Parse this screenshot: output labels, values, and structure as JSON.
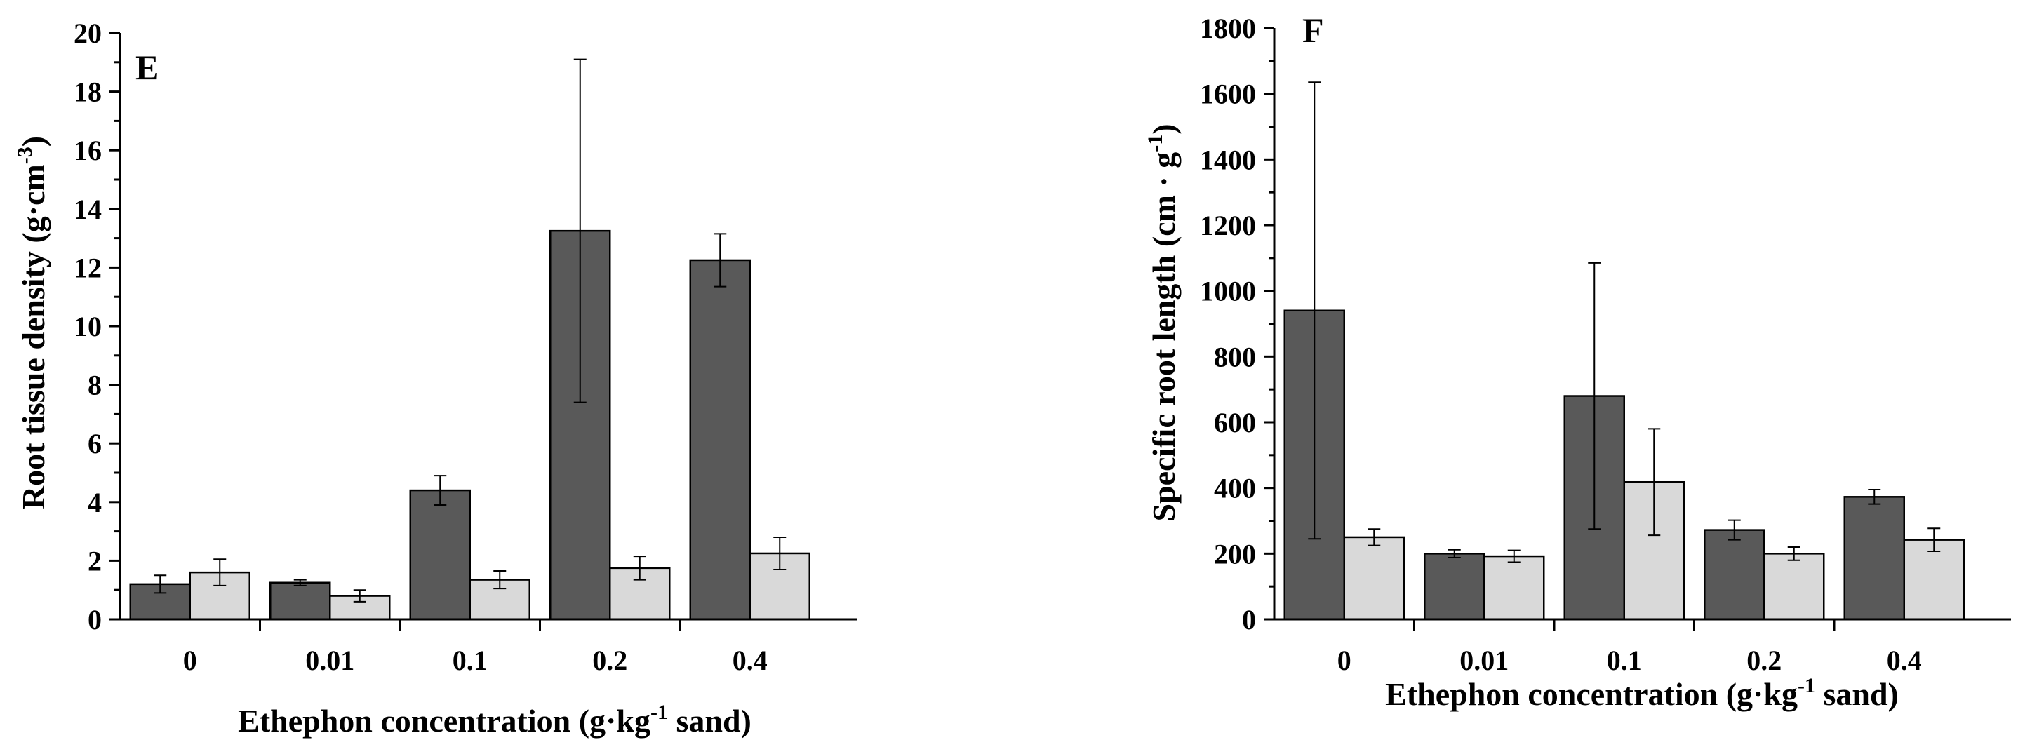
{
  "colors": {
    "series1": "#595959",
    "series2": "#d9d9d9",
    "axis": "#000000"
  },
  "chart_data": [
    {
      "type": "bar",
      "panel_label": "E",
      "categories": [
        "0",
        "0.01",
        "0.1",
        "0.2",
        "0.4"
      ],
      "series": [
        {
          "name": "dark",
          "values": [
            1.2,
            1.25,
            4.4,
            13.25,
            12.25
          ],
          "errors": [
            0.3,
            0.1,
            0.5,
            5.85,
            0.9
          ]
        },
        {
          "name": "light",
          "values": [
            1.6,
            0.8,
            1.35,
            1.75,
            2.25
          ],
          "errors": [
            0.45,
            0.2,
            0.3,
            0.4,
            0.55
          ]
        }
      ],
      "ylim": [
        0,
        20
      ],
      "yticks": [
        "0",
        "2",
        "4",
        "6",
        "8",
        "10",
        "12",
        "14",
        "16",
        "18",
        "20"
      ],
      "ylabel": {
        "main": "Root tissue density (g·cm",
        "sup": "-3",
        "end": ")"
      },
      "xlabel": {
        "main": "Ethephon concentration (g·kg",
        "sup": "-1",
        "end": " sand)"
      },
      "legend": "none"
    },
    {
      "type": "bar",
      "panel_label": "F",
      "categories": [
        "0",
        "0.01",
        "0.1",
        "0.2",
        "0.4"
      ],
      "series": [
        {
          "name": "dark",
          "values": [
            940,
            200,
            680,
            272,
            373
          ],
          "errors": [
            695,
            12,
            405,
            30,
            22
          ]
        },
        {
          "name": "light",
          "values": [
            250,
            192,
            418,
            200,
            242
          ],
          "errors": [
            25,
            18,
            162,
            20,
            35
          ]
        }
      ],
      "ylim": [
        0,
        1800
      ],
      "yticks": [
        "0",
        "200",
        "400",
        "600",
        "800",
        "1000",
        "1200",
        "1400",
        "1600",
        "1800"
      ],
      "ylabel": {
        "main": "Specific root length (cm · g",
        "sup": "-1",
        "end": ")"
      },
      "xlabel": {
        "main": "Ethephon concentration (g·kg",
        "sup": "-1",
        "end": " sand)"
      },
      "legend": "none"
    }
  ]
}
